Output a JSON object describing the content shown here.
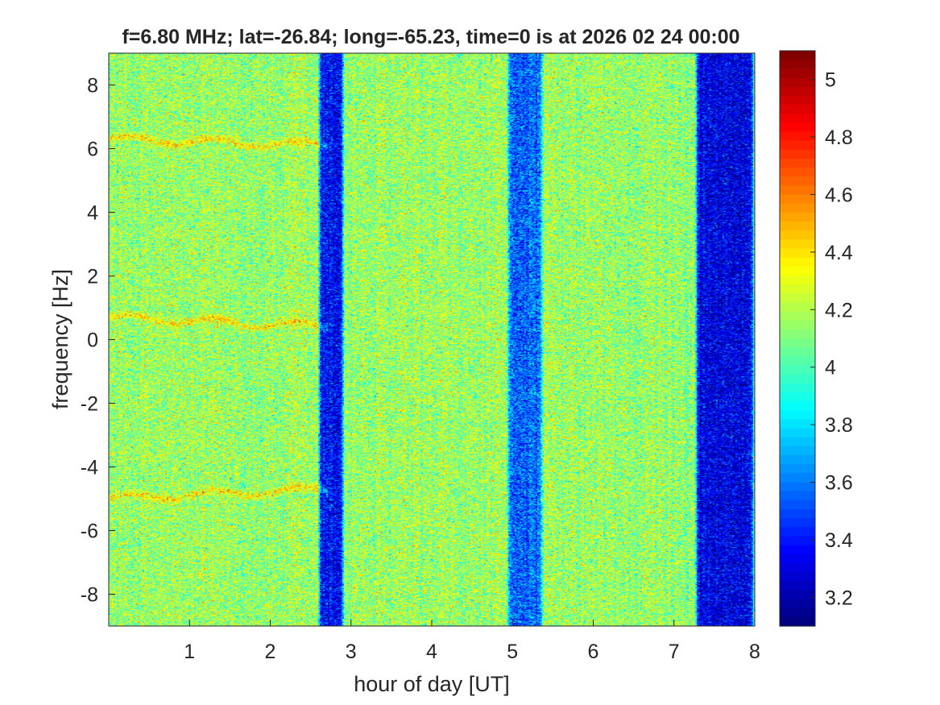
{
  "chart_data": {
    "type": "heatmap",
    "title": "f=6.80 MHz;  lat=-26.84; long=-65.23, time=0 is at 2026 02 24 00:00",
    "xlabel": "hour of day [UT]",
    "ylabel": "frequency [Hz]",
    "xlim": [
      0,
      8
    ],
    "ylim": [
      -9,
      9
    ],
    "x_ticks": [
      1,
      2,
      3,
      4,
      5,
      6,
      7,
      8
    ],
    "x_tick_labels": [
      "1",
      "2",
      "3",
      "4",
      "5",
      "6",
      "7",
      "8"
    ],
    "y_ticks": [
      8,
      6,
      4,
      2,
      0,
      -2,
      -4,
      -6,
      -8
    ],
    "y_tick_labels": [
      "8",
      "6",
      "4",
      "2",
      "0",
      "-2",
      "-4",
      "-6",
      "-8"
    ],
    "colormap": "jet",
    "clim": [
      3.1,
      5.1
    ],
    "colorbar_ticks": [
      5,
      4.8,
      4.6,
      4.4,
      4.2,
      4,
      3.8,
      3.6,
      3.4,
      3.2
    ],
    "colorbar_tick_labels": [
      "5",
      "4.8",
      "4.6",
      "4.4",
      "4.2",
      "4",
      "3.8",
      "3.6",
      "3.4",
      "3.2"
    ],
    "background_level": 4.15,
    "low_value_bands": [
      {
        "hour_start": 2.58,
        "hour_end": 2.92,
        "level": 3.35
      },
      {
        "hour_start": 4.92,
        "hour_end": 5.38,
        "level": 3.55
      },
      {
        "hour_start": 7.25,
        "hour_end": 8.0,
        "level": 3.3
      }
    ],
    "doppler_traces": [
      {
        "freq_hz_start": 6.3,
        "freq_hz_end": 6.1,
        "hour_start": 0.0,
        "hour_end": 2.7
      },
      {
        "freq_hz_start": 0.7,
        "freq_hz_end": 0.4,
        "hour_start": 0.0,
        "hour_end": 2.7
      },
      {
        "freq_hz_start": -5.0,
        "freq_hz_end": -4.7,
        "hour_start": 0.0,
        "hour_end": 2.7
      }
    ]
  }
}
